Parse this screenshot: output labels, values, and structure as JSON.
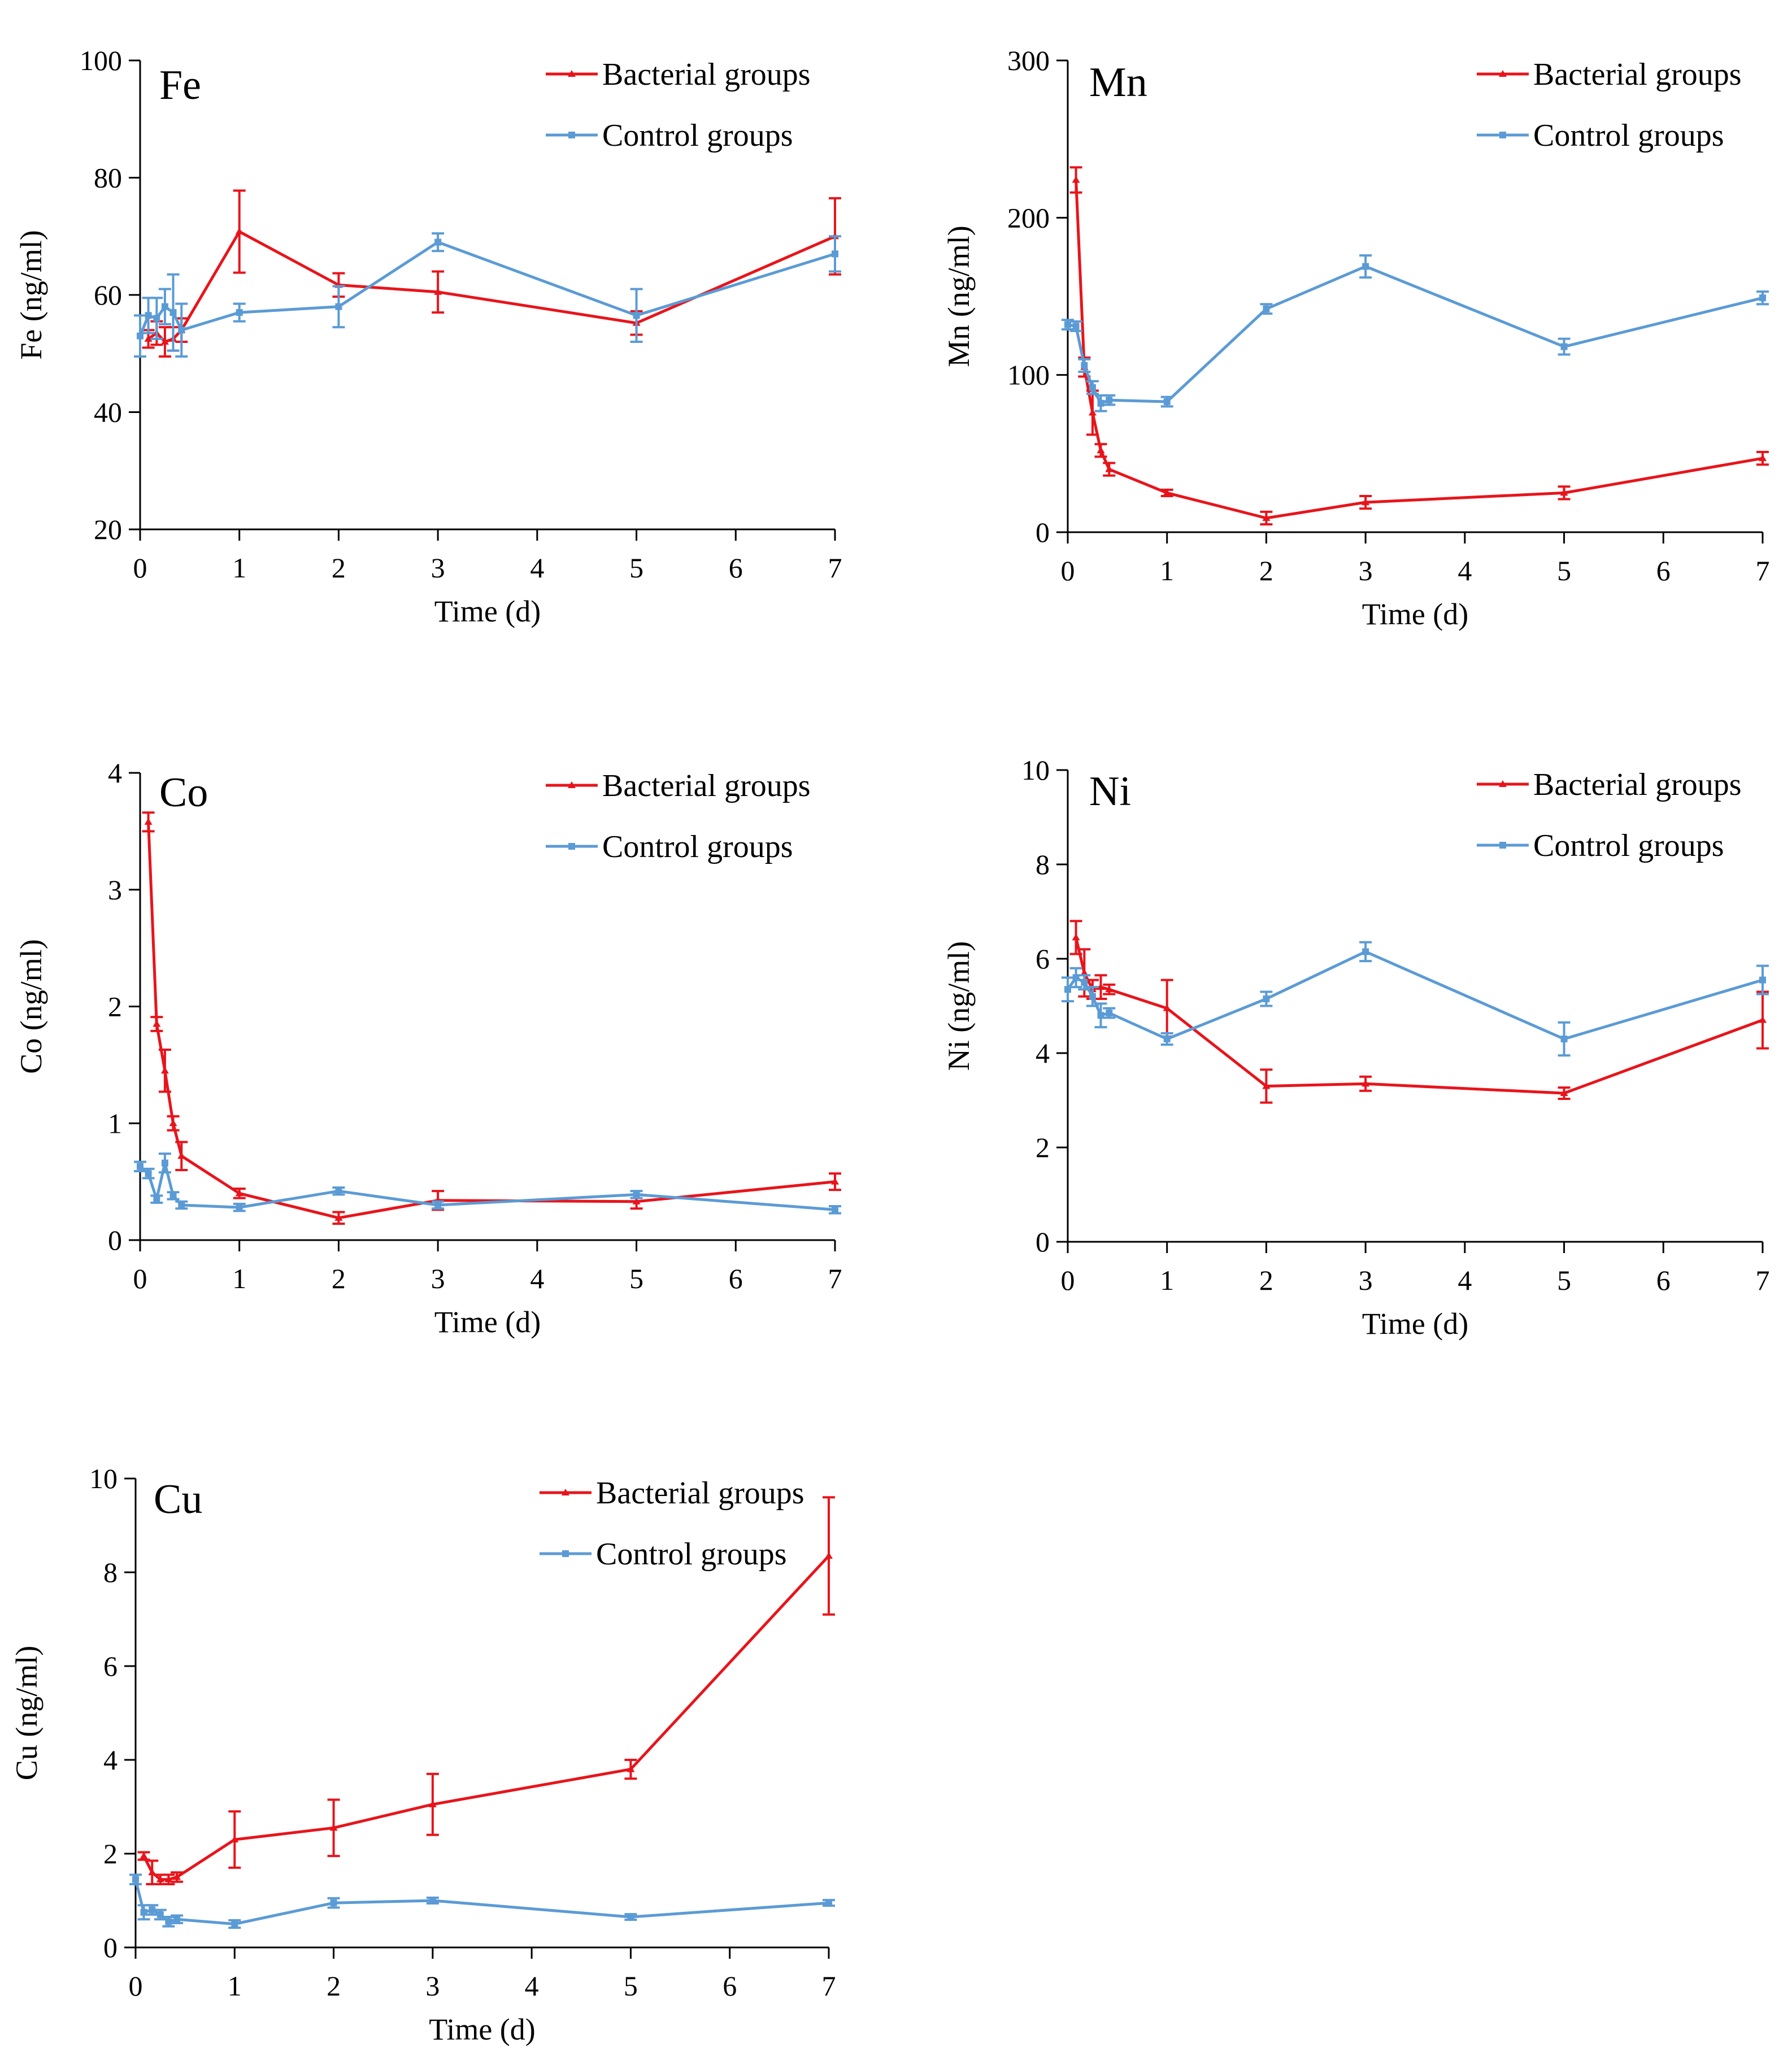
{
  "colors": {
    "bacterial": "#e8141b",
    "control": "#5b9bd5",
    "axis": "#000000"
  },
  "chart_data": [
    {
      "type": "line",
      "title": "Fe",
      "xlabel": "Time (d)",
      "ylabel": "Fe (ng/ml)",
      "xlim": [
        0,
        7
      ],
      "ylim": [
        20,
        100
      ],
      "xticks": [
        "0",
        "1",
        "2",
        "3",
        "4",
        "5",
        "6",
        "7"
      ],
      "yticks": [
        "20",
        "40",
        "60",
        "80",
        "100"
      ],
      "legend": [
        "Bacterial groups",
        "Control groups"
      ],
      "series": [
        {
          "name": "Bacterial groups",
          "x": [
            0.083,
            0.167,
            0.25,
            0.333,
            0.417,
            1,
            2,
            3,
            5,
            7
          ],
          "y": [
            52.5,
            53.5,
            52,
            52.5,
            54,
            70.8,
            61.7,
            60.5,
            55.2,
            70
          ],
          "err": [
            1.5,
            2,
            2.5,
            2,
            2,
            7,
            2,
            3.5,
            2,
            6.5
          ]
        },
        {
          "name": "Control groups",
          "x": [
            0,
            0.083,
            0.167,
            0.25,
            0.333,
            0.417,
            1,
            2,
            3,
            5,
            7
          ],
          "y": [
            53,
            56.5,
            56,
            58,
            57,
            54,
            57,
            58,
            69,
            56.5,
            67
          ],
          "err": [
            3.5,
            3,
            3.5,
            3,
            6.5,
            4.5,
            1.5,
            3.5,
            1.5,
            4.5,
            3
          ]
        }
      ]
    },
    {
      "type": "line",
      "title": "Mn",
      "xlabel": "Time (d)",
      "ylabel": "Mn (ng/ml)",
      "xlim": [
        0,
        7
      ],
      "ylim": [
        0,
        300
      ],
      "xticks": [
        "0",
        "1",
        "2",
        "3",
        "4",
        "5",
        "6",
        "7"
      ],
      "yticks": [
        "0",
        "100",
        "200",
        "300"
      ],
      "legend": [
        "Bacterial groups",
        "Control groups"
      ],
      "series": [
        {
          "name": "Bacterial groups",
          "x": [
            0.083,
            0.167,
            0.25,
            0.333,
            0.417,
            1,
            2,
            3,
            5,
            7
          ],
          "y": [
            224,
            105,
            76,
            52,
            40,
            25,
            9,
            19,
            25,
            47
          ],
          "err": [
            8,
            6,
            14,
            4,
            4,
            2,
            4,
            4,
            4,
            4
          ]
        },
        {
          "name": "Control groups",
          "x": [
            0,
            0.083,
            0.167,
            0.25,
            0.333,
            0.417,
            1,
            2,
            3,
            5,
            7
          ],
          "y": [
            132,
            131,
            106,
            92,
            82,
            84,
            83,
            142,
            169,
            118,
            149
          ],
          "err": [
            3,
            3,
            4,
            4,
            5,
            3,
            3,
            3,
            7,
            5,
            4
          ]
        }
      ]
    },
    {
      "type": "line",
      "title": "Co",
      "xlabel": "Time (d)",
      "ylabel": "Co (ng/ml)",
      "xlim": [
        0,
        7
      ],
      "ylim": [
        0,
        4
      ],
      "xticks": [
        "0",
        "1",
        "2",
        "3",
        "4",
        "5",
        "6",
        "7"
      ],
      "yticks": [
        "0",
        "1",
        "2",
        "3",
        "4"
      ],
      "legend": [
        "Bacterial groups",
        "Control groups"
      ],
      "series": [
        {
          "name": "Bacterial groups",
          "x": [
            0.083,
            0.167,
            0.25,
            0.333,
            0.417,
            1,
            2,
            3,
            5,
            7
          ],
          "y": [
            3.58,
            1.85,
            1.45,
            1.0,
            0.72,
            0.4,
            0.19,
            0.34,
            0.33,
            0.5
          ],
          "err": [
            0.08,
            0.06,
            0.18,
            0.06,
            0.12,
            0.04,
            0.05,
            0.08,
            0.06,
            0.07
          ]
        },
        {
          "name": "Control groups",
          "x": [
            0,
            0.083,
            0.167,
            0.25,
            0.333,
            0.417,
            1,
            2,
            3,
            5,
            7
          ],
          "y": [
            0.63,
            0.57,
            0.35,
            0.66,
            0.38,
            0.3,
            0.28,
            0.42,
            0.3,
            0.39,
            0.26
          ],
          "err": [
            0.04,
            0.04,
            0.03,
            0.08,
            0.03,
            0.03,
            0.03,
            0.03,
            0.03,
            0.03,
            0.03
          ]
        }
      ]
    },
    {
      "type": "line",
      "title": "Ni",
      "xlabel": "Time (d)",
      "ylabel": "Ni (ng/ml)",
      "xlim": [
        0,
        7
      ],
      "ylim": [
        0,
        10
      ],
      "xticks": [
        "0",
        "1",
        "2",
        "3",
        "4",
        "5",
        "6",
        "7"
      ],
      "yticks": [
        "0",
        "2",
        "4",
        "6",
        "8",
        "10"
      ],
      "legend": [
        "Bacterial groups",
        "Control groups"
      ],
      "series": [
        {
          "name": "Bacterial groups",
          "x": [
            0.083,
            0.167,
            0.25,
            0.333,
            0.417,
            1,
            2,
            3,
            5,
            7
          ],
          "y": [
            6.45,
            5.7,
            5.35,
            5.4,
            5.35,
            4.95,
            3.3,
            3.35,
            3.15,
            4.7
          ],
          "err": [
            0.35,
            0.5,
            0.2,
            0.25,
            0.1,
            0.6,
            0.35,
            0.15,
            0.12,
            0.6
          ]
        },
        {
          "name": "Control groups",
          "x": [
            0,
            0.083,
            0.167,
            0.25,
            0.333,
            0.417,
            1,
            2,
            3,
            5,
            7
          ],
          "y": [
            5.35,
            5.6,
            5.5,
            5.2,
            4.8,
            4.85,
            4.3,
            5.15,
            6.15,
            4.3,
            5.55
          ],
          "err": [
            0.25,
            0.2,
            0.15,
            0.2,
            0.25,
            0.1,
            0.12,
            0.15,
            0.2,
            0.35,
            0.3
          ]
        }
      ]
    },
    {
      "type": "line",
      "title": "Cu",
      "xlabel": "Time (d)",
      "ylabel": "Cu (ng/ml)",
      "xlim": [
        0,
        7
      ],
      "ylim": [
        0,
        10
      ],
      "xticks": [
        "0",
        "1",
        "2",
        "3",
        "4",
        "5",
        "6",
        "7"
      ],
      "yticks": [
        "0",
        "2",
        "4",
        "6",
        "8",
        "10"
      ],
      "legend": [
        "Bacterial groups",
        "Control groups"
      ],
      "series": [
        {
          "name": "Bacterial groups",
          "x": [
            0.083,
            0.167,
            0.25,
            0.333,
            0.417,
            1,
            2,
            3,
            5,
            7
          ],
          "y": [
            1.95,
            1.6,
            1.45,
            1.45,
            1.5,
            2.3,
            2.55,
            3.05,
            3.8,
            8.35
          ],
          "err": [
            0.08,
            0.25,
            0.1,
            0.1,
            0.1,
            0.6,
            0.6,
            0.65,
            0.2,
            1.25
          ]
        },
        {
          "name": "Control groups",
          "x": [
            0,
            0.083,
            0.167,
            0.25,
            0.333,
            0.417,
            1,
            2,
            3,
            5,
            7
          ],
          "y": [
            1.45,
            0.75,
            0.8,
            0.7,
            0.55,
            0.6,
            0.5,
            0.95,
            1.0,
            0.65,
            0.95
          ],
          "err": [
            0.1,
            0.15,
            0.1,
            0.1,
            0.1,
            0.08,
            0.08,
            0.1,
            0.06,
            0.06,
            0.06
          ]
        }
      ]
    }
  ]
}
